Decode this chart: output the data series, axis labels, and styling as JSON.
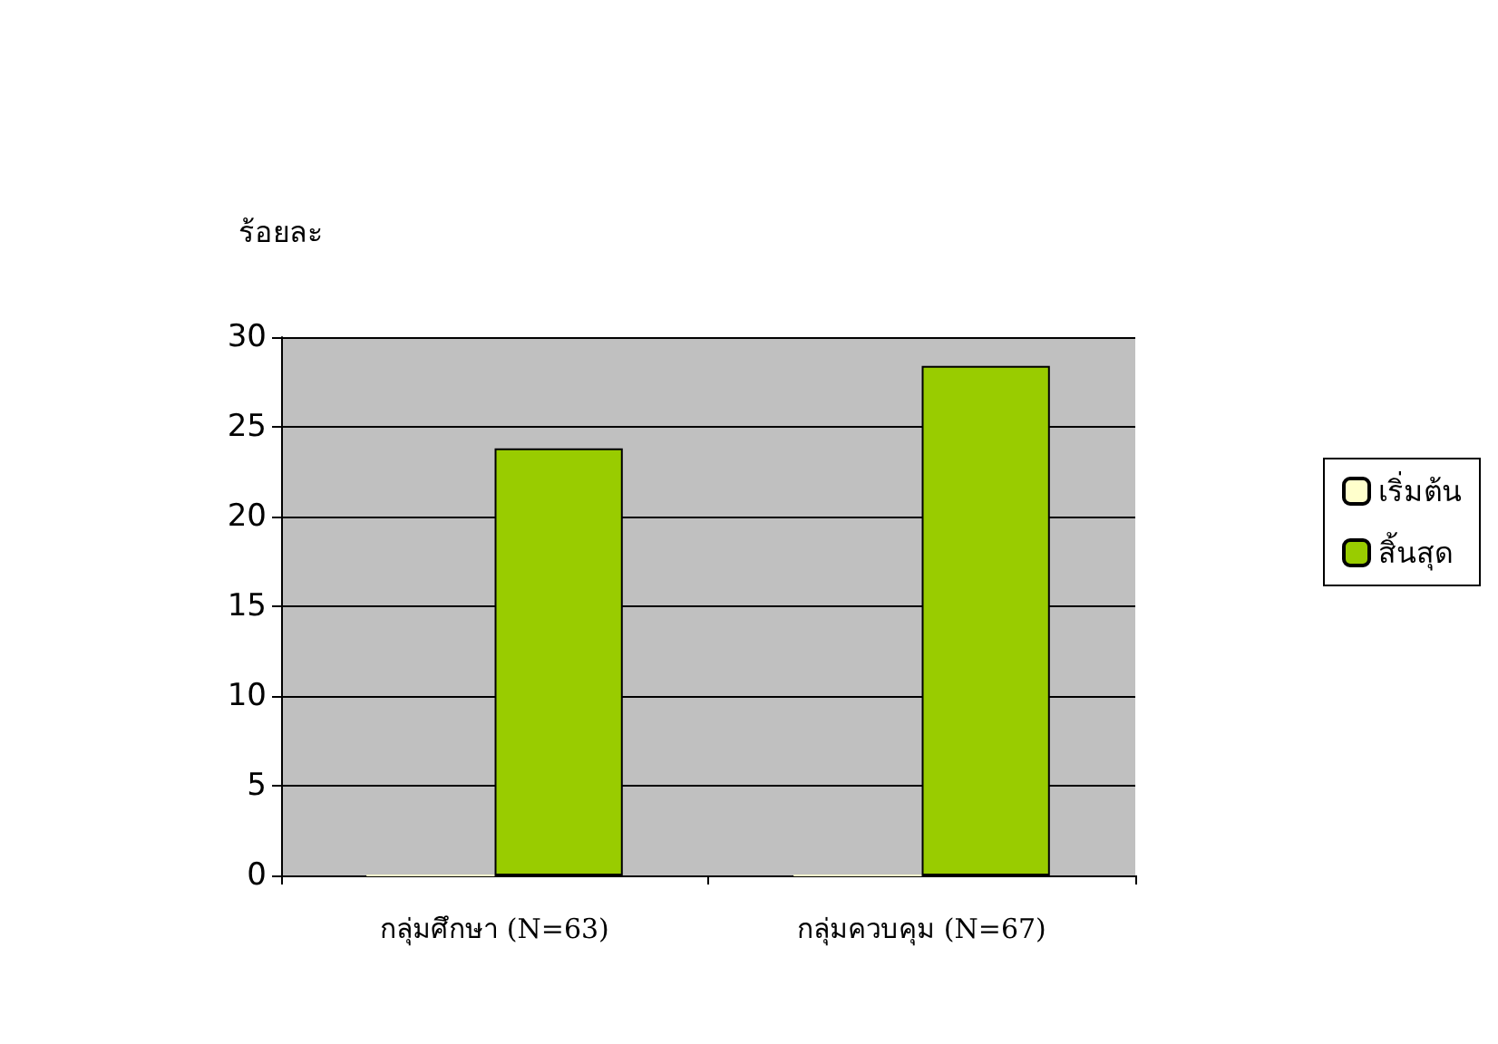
{
  "chart_data": {
    "type": "bar",
    "ylabel": "ร้อยละ",
    "categories": [
      "กลุ่มศึกษา (N=63)",
      "กลุ่มควบคุม (N=67)"
    ],
    "series": [
      {
        "name": "เริ่มต้น",
        "color": "#ffffcc",
        "values": [
          0,
          0
        ]
      },
      {
        "name": "สิ้นสุด",
        "color": "#99cc00",
        "values": [
          23.8,
          28.4
        ]
      }
    ],
    "ylim": [
      0,
      30
    ],
    "yticks": [
      0,
      5,
      10,
      15,
      20,
      25,
      30
    ],
    "grid": "y",
    "legend": "right"
  }
}
